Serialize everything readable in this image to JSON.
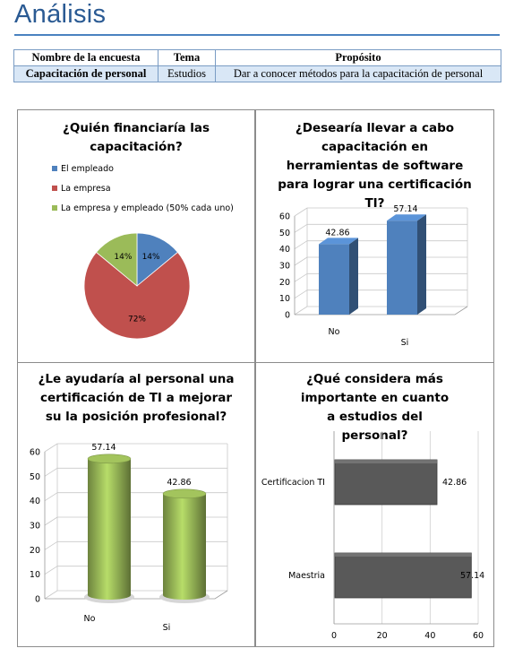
{
  "page": {
    "title": "Análisis"
  },
  "table": {
    "headers": [
      "Nombre de la encuesta",
      "Tema",
      "Propósito"
    ],
    "row": [
      "Capacitación  de personal",
      "Estudios",
      "Dar a conocer métodos para la capacitación  de personal"
    ]
  },
  "chart_data": [
    {
      "type": "pie",
      "title": "¿Quién financiaría las capacitación?",
      "legend_position": "top-left",
      "slices": [
        {
          "label": "El empleado",
          "value": 14,
          "display": "14%",
          "color": "#4f81bd"
        },
        {
          "label": "La empresa",
          "value": 72,
          "display": "72%",
          "color": "#c0504d"
        },
        {
          "label": "La empresa y empleado (50% cada uno)",
          "value": 14,
          "display": "14%",
          "color": "#9bbb59"
        }
      ]
    },
    {
      "type": "bar",
      "style": "3d-column",
      "title": "¿Desearía llevar a cabo capacitación en herramientas de software para lograr una certificación TI?",
      "categories": [
        "No",
        "Si"
      ],
      "values": [
        42.86,
        57.14
      ],
      "value_labels": [
        "42.86",
        "57.14"
      ],
      "ylim": [
        0,
        60
      ],
      "yticks": [
        "0",
        "10",
        "20",
        "30",
        "40",
        "50",
        "60"
      ],
      "color": "#4f81bd",
      "grid": true
    },
    {
      "type": "bar",
      "style": "3d-cylinder",
      "title": "¿Le ayudaría al personal una certificación de TI a mejorar su la posición profesional?",
      "categories": [
        "No",
        "Si"
      ],
      "values": [
        57.14,
        42.86
      ],
      "value_labels": [
        "57.14",
        "42.86"
      ],
      "ylim": [
        0,
        60
      ],
      "yticks": [
        "0",
        "10",
        "20",
        "30",
        "40",
        "50",
        "60"
      ],
      "color": "#9bbb59",
      "grid": true
    },
    {
      "type": "bar",
      "orientation": "horizontal",
      "title": "¿Qué considera más importante en cuanto a estudios del personal?",
      "categories": [
        "Certificacion TI",
        "Maestria"
      ],
      "values": [
        42.86,
        57.14
      ],
      "value_labels": [
        "42.86",
        "57.14"
      ],
      "xlim": [
        0,
        60
      ],
      "xticks": [
        "0",
        "20",
        "40",
        "60"
      ],
      "color": "#595959",
      "grid": true
    }
  ]
}
